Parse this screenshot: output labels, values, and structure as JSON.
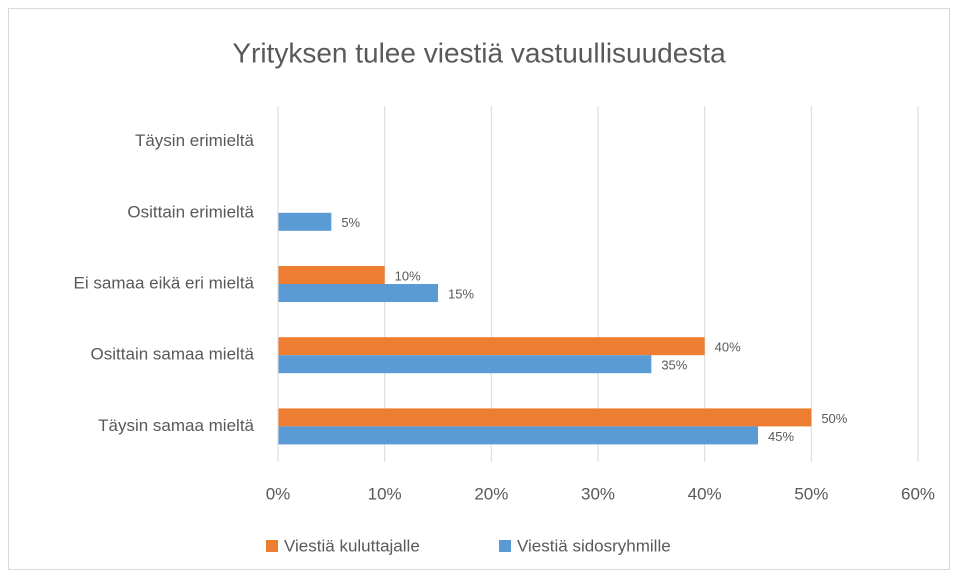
{
  "chart_data": {
    "type": "bar",
    "orientation": "horizontal",
    "title": "Yrityksen tulee viestiä vastuullisuudesta",
    "categories": [
      "Täysin erimieltä",
      "Osittain erimieltä",
      "Ei samaa eikä eri mieltä",
      "Osittain samaa mieltä",
      "Täysin samaa mieltä"
    ],
    "series": [
      {
        "name": "Viestiä kuluttajalle",
        "color": "#ed7d31",
        "values": [
          null,
          null,
          10,
          40,
          50
        ],
        "value_labels": [
          null,
          null,
          "10%",
          "40%",
          "50%"
        ]
      },
      {
        "name": "Viestiä sidosryhmille",
        "color": "#5b9bd5",
        "values": [
          null,
          5,
          15,
          35,
          45
        ],
        "value_labels": [
          null,
          "5%",
          "15%",
          "35%",
          "45%"
        ]
      }
    ],
    "xlim": [
      0,
      60
    ],
    "xticks": [
      {
        "value": 0,
        "label": "0%"
      },
      {
        "value": 10,
        "label": "10%"
      },
      {
        "value": 20,
        "label": "20%"
      },
      {
        "value": 30,
        "label": "30%"
      },
      {
        "value": 40,
        "label": "40%"
      },
      {
        "value": 50,
        "label": "50%"
      },
      {
        "value": 60,
        "label": "60%"
      }
    ],
    "grid": true,
    "legend": "bottom"
  }
}
